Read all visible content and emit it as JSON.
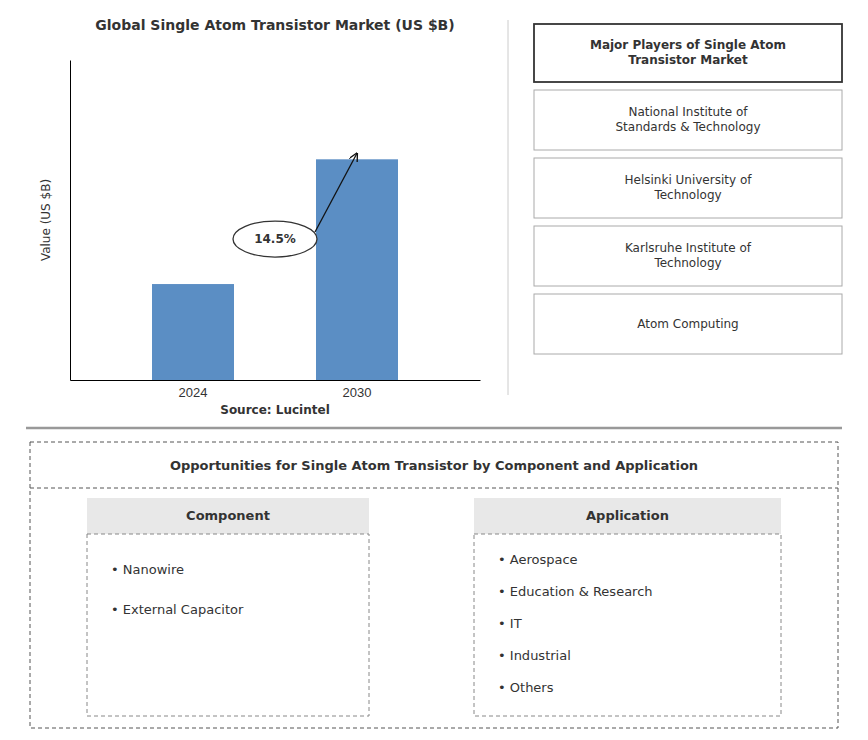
{
  "chart_data": {
    "type": "bar",
    "title": "Global Single Atom Transistor Market (US $B)",
    "categories": [
      "2024",
      "2030"
    ],
    "values": [
      1.0,
      2.3
    ],
    "color": "#5b8ec4",
    "ylabel": "Value (US $B)",
    "ylim": [
      0,
      3.335
    ],
    "grid": false,
    "tick_labels": "x",
    "annotations": [
      [
        "14.5%"
      ],
      [
        "Source: Lucintel"
      ],
      [
        "Major Players of Single Atom\nTransistor Market",
        "National Institute of\nStandards & Technology",
        "Helsinki University of\nTechnology",
        "Karlsruhe Institute of\nTechnology",
        "Atom Computing"
      ],
      [
        "Opportunities for Single Atom Transistor by Component and Application"
      ],
      [
        "Component",
        "• Nanowire",
        "• External Capacitor"
      ],
      [
        "Application",
        "• Aerospace",
        "• Education & Research",
        "• IT",
        "• Industrial",
        "• Others"
      ]
    ]
  }
}
